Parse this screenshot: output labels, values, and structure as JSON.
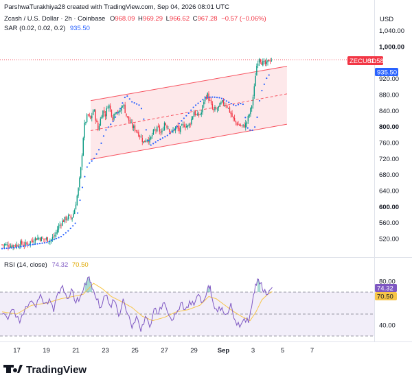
{
  "header": {
    "attribution": "ParshwaTurakhiya28 created with TradingView.com, Sep 04, 2026 08:01 UTC",
    "instrument": "Zcash / U.S. Dollar · 2h · Coinbase",
    "ohlc": [
      {
        "label": "O",
        "value": "968.09"
      },
      {
        "label": "H",
        "value": "969.29"
      },
      {
        "label": "L",
        "value": "966.62"
      },
      {
        "label": "C",
        "value": "967.28"
      }
    ],
    "change": "−0.57 (−0.06%)",
    "sar_label": "SAR (0.02, 0.02, 0.2)",
    "sar_value": "935.50",
    "rsi_label": "RSI (14, close)",
    "rsi_value": "74.32",
    "rsi_ma_value": "70.50"
  },
  "price_axis": {
    "currency": "USD",
    "ticks": [
      "1,040.00",
      "1,000.00",
      "920.00",
      "880.00",
      "840.00",
      "800.00",
      "760.00",
      "720.00",
      "680.00",
      "640.00",
      "600.00",
      "560.00",
      "520.00"
    ],
    "bold_ticks": [
      "1,000.00",
      "800.00",
      "600.00"
    ],
    "ticker_badge": "ZECUSD",
    "ticker_countdown": "01:58:44",
    "sar_badge": "935.50"
  },
  "rsi_axis": {
    "ticks": [
      "80.00",
      "40.00"
    ],
    "rsi_badge": "74.32",
    "ma_badge": "70.50"
  },
  "time_axis": {
    "labels": [
      "17",
      "19",
      "21",
      "23",
      "25",
      "27",
      "29",
      "Sep",
      "3",
      "5",
      "7"
    ]
  },
  "branding": {
    "logo_text": "TradingView"
  },
  "colors": {
    "up": "#089981",
    "down": "#f23645",
    "sar": "#2962ff",
    "rsi": "#7e57c2",
    "rsi_ma": "#f7c548",
    "channel_fill": "#fde4e6",
    "channel_line": "#f7525f",
    "ticker_badge": "#f23645"
  },
  "chart_data": [
    {
      "type": "candlestick",
      "title": "Zcash / U.S. Dollar · 2h · Coinbase",
      "ylim": [
        495,
        1060
      ],
      "y_scale": "linear",
      "grid": false,
      "x_ticks": [
        "17",
        "19",
        "21",
        "23",
        "25",
        "27",
        "29",
        "Sep",
        "3",
        "5",
        "7"
      ],
      "x_tick_days": [
        17,
        19,
        21,
        23,
        25,
        27,
        29,
        31,
        33,
        35,
        37
      ],
      "candles_day_range": [
        16.0,
        34.3
      ],
      "close_path": [
        [
          16.0,
          505
        ],
        [
          16.6,
          503
        ],
        [
          17.0,
          504
        ],
        [
          17.3,
          508
        ],
        [
          17.6,
          505
        ],
        [
          17.9,
          512
        ],
        [
          18.2,
          520
        ],
        [
          18.5,
          522
        ],
        [
          18.8,
          518
        ],
        [
          19.0,
          519
        ],
        [
          19.3,
          516
        ],
        [
          19.6,
          530
        ],
        [
          19.8,
          548
        ],
        [
          20.0,
          560
        ],
        [
          20.2,
          567
        ],
        [
          20.5,
          575
        ],
        [
          20.7,
          570
        ],
        [
          20.9,
          590
        ],
        [
          21.1,
          630
        ],
        [
          21.2,
          650
        ],
        [
          21.35,
          700
        ],
        [
          21.55,
          800
        ],
        [
          21.8,
          830
        ],
        [
          22.0,
          818
        ],
        [
          22.2,
          845
        ],
        [
          22.5,
          792
        ],
        [
          22.8,
          840
        ],
        [
          23.0,
          830
        ],
        [
          23.2,
          858
        ],
        [
          23.5,
          822
        ],
        [
          23.7,
          845
        ],
        [
          23.9,
          832
        ],
        [
          24.2,
          858
        ],
        [
          24.4,
          830
        ],
        [
          24.6,
          815
        ],
        [
          24.8,
          800
        ],
        [
          25.0,
          795
        ],
        [
          25.3,
          780
        ],
        [
          25.6,
          760
        ],
        [
          25.8,
          772
        ],
        [
          26.0,
          765
        ],
        [
          26.3,
          790
        ],
        [
          26.6,
          795
        ],
        [
          26.8,
          780
        ],
        [
          27.0,
          810
        ],
        [
          27.2,
          800
        ],
        [
          27.5,
          785
        ],
        [
          27.8,
          800
        ],
        [
          28.0,
          790
        ],
        [
          28.3,
          805
        ],
        [
          28.6,
          800
        ],
        [
          28.8,
          815
        ],
        [
          29.0,
          838
        ],
        [
          29.2,
          825
        ],
        [
          29.5,
          835
        ],
        [
          29.7,
          870
        ],
        [
          29.9,
          880
        ],
        [
          30.1,
          860
        ],
        [
          30.3,
          838
        ],
        [
          30.6,
          845
        ],
        [
          30.9,
          860
        ],
        [
          31.2,
          855
        ],
        [
          31.4,
          840
        ],
        [
          31.7,
          815
        ],
        [
          32.0,
          805
        ],
        [
          32.3,
          800
        ],
        [
          32.5,
          805
        ],
        [
          32.7,
          825
        ],
        [
          32.9,
          850
        ],
        [
          33.1,
          900
        ],
        [
          33.2,
          945
        ],
        [
          33.4,
          975
        ],
        [
          33.6,
          960
        ],
        [
          33.9,
          955
        ],
        [
          34.1,
          968
        ],
        [
          34.3,
          967
        ]
      ],
      "sar_path": [
        [
          16.0,
          495
        ],
        [
          17.0,
          498
        ],
        [
          18.0,
          505
        ],
        [
          19.0,
          510
        ],
        [
          20.0,
          525
        ],
        [
          20.5,
          540
        ],
        [
          21.0,
          560
        ],
        [
          21.2,
          600
        ],
        [
          21.5,
          660
        ],
        [
          21.8,
          705
        ],
        [
          22.2,
          718
        ],
        [
          22.6,
          745
        ],
        [
          23.0,
          790
        ],
        [
          23.5,
          812
        ],
        [
          24.0,
          845
        ],
        [
          24.4,
          880
        ],
        [
          24.8,
          862
        ],
        [
          25.4,
          852
        ],
        [
          26.0,
          752
        ],
        [
          26.6,
          766
        ],
        [
          27.2,
          778
        ],
        [
          27.6,
          790
        ],
        [
          28.1,
          812
        ],
        [
          28.6,
          832
        ],
        [
          29.0,
          850
        ],
        [
          29.4,
          862
        ],
        [
          29.8,
          873
        ],
        [
          30.3,
          874
        ],
        [
          30.8,
          872
        ],
        [
          31.3,
          862
        ],
        [
          31.8,
          852
        ],
        [
          32.3,
          860
        ],
        [
          32.6,
          798
        ],
        [
          32.9,
          788
        ],
        [
          33.2,
          803
        ],
        [
          33.5,
          880
        ],
        [
          33.9,
          920
        ],
        [
          34.2,
          935
        ]
      ],
      "series": [
        {
          "name": "SAR (0.02, 0.02, 0.2)",
          "last_value": 935.5
        },
        {
          "name": "Zcash / U.S. Dollar",
          "last_close": 967.28
        }
      ],
      "channel": {
        "upper": [
          [
            22.0,
            865
          ],
          [
            35.3,
            951
          ]
        ],
        "middle": [
          [
            22.0,
            790
          ],
          [
            35.3,
            882
          ]
        ],
        "lower": [
          [
            22.0,
            718
          ],
          [
            35.3,
            806
          ]
        ]
      },
      "last_price": 967.28,
      "ohlc_last": {
        "open": 968.09,
        "high": 969.29,
        "low": 966.62,
        "close": 967.28
      }
    },
    {
      "type": "line",
      "title": "RSI (14, close)",
      "ylim": [
        23,
        90
      ],
      "y_ticks": [
        80,
        40
      ],
      "bands": {
        "upper": 70,
        "middle": 50,
        "lower": 30
      },
      "series": [
        {
          "name": "RSI (14, close)",
          "last_value": 74.32,
          "points": [
            [
              16.0,
              50
            ],
            [
              16.4,
              45
            ],
            [
              16.8,
              54
            ],
            [
              17.2,
              42
            ],
            [
              17.6,
              57
            ],
            [
              18.0,
              62
            ],
            [
              18.3,
              56
            ],
            [
              18.6,
              68
            ],
            [
              18.9,
              60
            ],
            [
              19.2,
              64
            ],
            [
              19.5,
              52
            ],
            [
              19.8,
              70
            ],
            [
              20.1,
              76
            ],
            [
              20.4,
              64
            ],
            [
              20.7,
              73
            ],
            [
              21.0,
              60
            ],
            [
              21.3,
              66
            ],
            [
              21.6,
              78
            ],
            [
              21.9,
              84
            ],
            [
              22.1,
              73
            ],
            [
              22.4,
              63
            ],
            [
              22.7,
              56
            ],
            [
              23.0,
              67
            ],
            [
              23.3,
              58
            ],
            [
              23.6,
              62
            ],
            [
              23.9,
              48
            ],
            [
              24.2,
              64
            ],
            [
              24.5,
              50
            ],
            [
              24.8,
              37
            ],
            [
              25.1,
              48
            ],
            [
              25.4,
              34
            ],
            [
              25.7,
              48
            ],
            [
              26.0,
              38
            ],
            [
              26.3,
              55
            ],
            [
              26.6,
              50
            ],
            [
              26.9,
              60
            ],
            [
              27.2,
              52
            ],
            [
              27.5,
              44
            ],
            [
              27.8,
              50
            ],
            [
              28.1,
              60
            ],
            [
              28.4,
              54
            ],
            [
              28.7,
              62
            ],
            [
              29.0,
              58
            ],
            [
              29.3,
              68
            ],
            [
              29.6,
              61
            ],
            [
              29.9,
              72
            ],
            [
              30.1,
              76
            ],
            [
              30.3,
              60
            ],
            [
              30.6,
              52
            ],
            [
              30.9,
              56
            ],
            [
              31.2,
              50
            ],
            [
              31.5,
              60
            ],
            [
              31.8,
              44
            ],
            [
              32.1,
              38
            ],
            [
              32.4,
              46
            ],
            [
              32.7,
              42
            ],
            [
              32.9,
              56
            ],
            [
              33.1,
              70
            ],
            [
              33.3,
              82
            ],
            [
              33.5,
              78
            ],
            [
              33.7,
              70
            ],
            [
              34.0,
              68
            ],
            [
              34.3,
              74.32
            ]
          ]
        },
        {
          "name": "RSI-based MA",
          "last_value": 70.5,
          "points": [
            [
              16.0,
              52
            ],
            [
              17.0,
              50
            ],
            [
              18.0,
              58
            ],
            [
              19.0,
              60
            ],
            [
              20.0,
              64
            ],
            [
              20.8,
              66
            ],
            [
              21.5,
              68
            ],
            [
              22.2,
              78
            ],
            [
              22.8,
              73
            ],
            [
              23.4,
              66
            ],
            [
              24.0,
              62
            ],
            [
              24.8,
              56
            ],
            [
              25.5,
              48
            ],
            [
              26.2,
              44
            ],
            [
              27.0,
              47
            ],
            [
              27.8,
              52
            ],
            [
              28.6,
              54
            ],
            [
              29.4,
              58
            ],
            [
              30.0,
              66
            ],
            [
              30.5,
              64
            ],
            [
              31.0,
              59
            ],
            [
              31.6,
              53
            ],
            [
              32.2,
              48
            ],
            [
              32.8,
              44
            ],
            [
              33.2,
              52
            ],
            [
              33.6,
              63
            ],
            [
              34.0,
              68
            ],
            [
              34.3,
              70.5
            ]
          ]
        }
      ]
    }
  ]
}
